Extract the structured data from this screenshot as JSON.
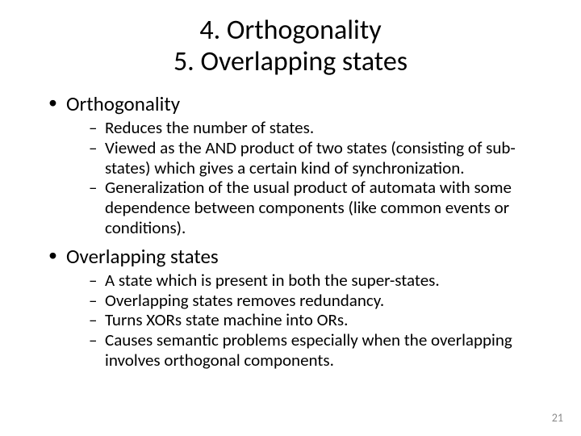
{
  "slide": {
    "title_line1": "4. Orthogonality",
    "title_line2": "5. Overlapping states",
    "sections": [
      {
        "heading": "Orthogonality",
        "items": [
          "Reduces the number of states.",
          "Viewed as the AND product of two states (consisting of sub-states) which gives a certain kind of synchronization.",
          "Generalization of the usual product of automata with some dependence between components (like common events or conditions)."
        ]
      },
      {
        "heading": "Overlapping states",
        "items": [
          "A state which is present in both the super-states.",
          "Overlapping states removes redundancy.",
          "Turns XORs state machine into ORs.",
          "Causes semantic problems especially when the overlapping involves orthogonal components."
        ]
      }
    ],
    "page_number": "21",
    "colors": {
      "background": "#ffffff",
      "text": "#000000",
      "page_number": "#8b8b8b"
    },
    "typography": {
      "title_fontsize": 34,
      "level1_fontsize": 25,
      "level2_fontsize": 21,
      "pagenum_fontsize": 14,
      "font_family": "Calibri"
    }
  }
}
